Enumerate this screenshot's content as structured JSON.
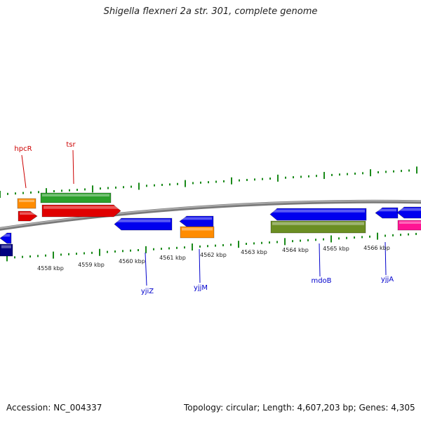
{
  "title": "Shigella flexneri 2a str. 301, complete genome",
  "footer": {
    "accession": "Accession: NC_004337",
    "summary": "Topology: circular; Length: 4,607,203 bp; Genes: 4,305"
  },
  "colors": {
    "backbone": "#8a8a8a",
    "tick": "#1a8a1a",
    "gene_label_top": "#cc0000",
    "gene_label_bottom": "#0000cc",
    "scale_label": "#222222"
  },
  "scale_labels": [
    "4558 kbp",
    "4559 kbp",
    "4560 kbp",
    "4561 kbp",
    "4562 kbp",
    "4563 kbp",
    "4564 kbp",
    "4565 kbp",
    "4566 kbp"
  ],
  "gene_labels": [
    {
      "text": "hpcR",
      "color": "#cc0000"
    },
    {
      "text": "tsr",
      "color": "#cc0000"
    },
    {
      "text": "yjiZ",
      "color": "#0000cc"
    },
    {
      "text": "yjjM",
      "color": "#0000cc"
    },
    {
      "text": "mdoB",
      "color": "#0000cc"
    },
    {
      "text": "yjjA",
      "color": "#0000cc"
    }
  ],
  "features": [
    {
      "color": "#ff8c00",
      "dir": "none"
    },
    {
      "color": "#2ca02c",
      "dir": "none"
    },
    {
      "color": "#e00000",
      "dir": "right"
    },
    {
      "color": "#e00000",
      "dir": "right"
    },
    {
      "color": "#0000ee",
      "dir": "left"
    },
    {
      "color": "#0000ee",
      "dir": "left"
    },
    {
      "color": "#ff8c00",
      "dir": "none"
    },
    {
      "color": "#0000ee",
      "dir": "left"
    },
    {
      "color": "#6b8e23",
      "dir": "none"
    },
    {
      "color": "#0000ee",
      "dir": "left"
    },
    {
      "color": "#0000ee",
      "dir": "left"
    },
    {
      "color": "#ff1493",
      "dir": "none"
    },
    {
      "color": "#0000ee",
      "dir": "left"
    },
    {
      "color": "#000080",
      "dir": "none"
    }
  ]
}
